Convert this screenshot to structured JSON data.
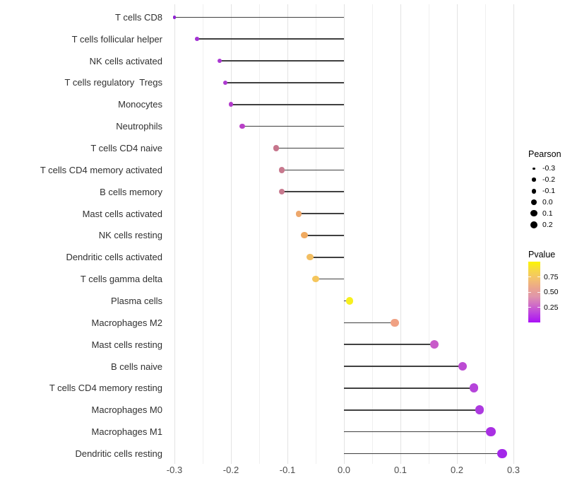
{
  "chart_data": {
    "type": "scatter",
    "variant": "lollipop",
    "title": "",
    "xlabel": "",
    "ylabel": "",
    "xlim": [
      -0.314,
      0.316
    ],
    "grid": "vertical-only",
    "x_tick_labels": [
      "-0.3",
      "-0.2",
      "-0.1",
      "0.0",
      "0.1",
      "0.2",
      "0.3"
    ],
    "x_tick_values": [
      -0.3,
      -0.2,
      -0.1,
      0.0,
      0.1,
      0.2,
      0.3
    ],
    "x_minor_tick_values": [
      -0.25,
      -0.15,
      -0.05,
      0.05,
      0.15,
      0.25
    ],
    "stem_origin": 0.0,
    "stem_color": "#404040",
    "rows": [
      {
        "label": "T cells CD8",
        "pearson": -0.3,
        "dot_color": "#8E22D1"
      },
      {
        "label": "T cells follicular helper",
        "pearson": -0.26,
        "dot_color": "#A433D4"
      },
      {
        "label": "NK cells activated",
        "pearson": -0.22,
        "dot_color": "#AA38D2"
      },
      {
        "label": "T cells regulatory  Tregs",
        "pearson": -0.21,
        "dot_color": "#AE3AD0"
      },
      {
        "label": "Monocytes",
        "pearson": -0.2,
        "dot_color": "#B33CCB"
      },
      {
        "label": "Neutrophils",
        "pearson": -0.18,
        "dot_color": "#B940C7"
      },
      {
        "label": "T cells CD4 naive",
        "pearson": -0.12,
        "dot_color": "#C6758C"
      },
      {
        "label": "T cells CD4 memory activated",
        "pearson": -0.11,
        "dot_color": "#C8798E"
      },
      {
        "label": "B cells memory",
        "pearson": -0.11,
        "dot_color": "#C87A8F"
      },
      {
        "label": "Mast cells activated",
        "pearson": -0.08,
        "dot_color": "#EDA76C"
      },
      {
        "label": "NK cells resting",
        "pearson": -0.07,
        "dot_color": "#F0AA60"
      },
      {
        "label": "Dendritic cells activated",
        "pearson": -0.06,
        "dot_color": "#F2BE62"
      },
      {
        "label": "T cells gamma delta",
        "pearson": -0.05,
        "dot_color": "#F5C65C"
      },
      {
        "label": "Plasma cells",
        "pearson": 0.01,
        "dot_color": "#F7F01E"
      },
      {
        "label": "Macrophages M2",
        "pearson": 0.09,
        "dot_color": "#F0A183"
      },
      {
        "label": "Mast cells resting",
        "pearson": 0.16,
        "dot_color": "#C85BC9"
      },
      {
        "label": "B cells naive",
        "pearson": 0.21,
        "dot_color": "#BC4BD3"
      },
      {
        "label": "T cells CD4 memory resting",
        "pearson": 0.23,
        "dot_color": "#B544DA"
      },
      {
        "label": "Macrophages M0",
        "pearson": 0.24,
        "dot_color": "#AD3AE0"
      },
      {
        "label": "Macrophages M1",
        "pearson": 0.26,
        "dot_color": "#A930E3"
      },
      {
        "label": "Dendritic cells resting",
        "pearson": 0.28,
        "dot_color": "#A327E9"
      }
    ],
    "size_legend": {
      "title": "Pearson",
      "entries": [
        {
          "label": "-0.3",
          "value": -0.3
        },
        {
          "label": "-0.2",
          "value": -0.2
        },
        {
          "label": "-0.1",
          "value": -0.1
        },
        {
          "label": "0.0",
          "value": 0.0
        },
        {
          "label": "0.1",
          "value": 0.1
        },
        {
          "label": "0.2",
          "value": 0.2
        }
      ],
      "dot_color": "#000000"
    },
    "color_legend": {
      "title": "Pvalue",
      "tick_labels": [
        "0.75",
        "0.50",
        "0.25"
      ],
      "tick_fractions_from_top": [
        0.25,
        0.5,
        0.75
      ],
      "gradient_top_to_bottom": [
        "#FCF500",
        "#F6D747",
        "#F3C16E",
        "#EBA68C",
        "#E096AB",
        "#CF6CC7",
        "#BC3FE0",
        "#AA10F6"
      ]
    }
  }
}
